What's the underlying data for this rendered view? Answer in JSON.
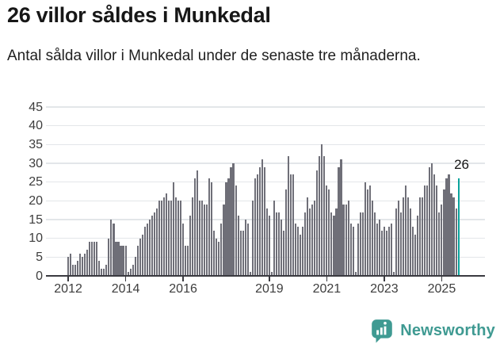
{
  "header": {
    "title": "26 villor såldes i Munkedal",
    "subtitle": "Antal sålda villor i Munkedal under de senaste tre månaderna."
  },
  "chart_data": {
    "type": "bar",
    "title": "26 villor såldes i Munkedal",
    "subtitle": "Antal sålda villor i Munkedal under de senaste tre månaderna.",
    "xlabel": "",
    "ylabel": "",
    "ylim": [
      0,
      45
    ],
    "grid": "horizontal",
    "legend": "none",
    "y_ticks": [
      0,
      5,
      10,
      15,
      20,
      25,
      30,
      35,
      40,
      45
    ],
    "x_tick_years": [
      "2012",
      "2014",
      "2016",
      "2019",
      "2021",
      "2023",
      "2025"
    ],
    "start_month": "2012-01",
    "end_month": "2025-08",
    "bar_color": "#6f6f78",
    "values": [
      5,
      6,
      3,
      3,
      4,
      6,
      5,
      6,
      7,
      9,
      9,
      9,
      9,
      4,
      2,
      2,
      3,
      10,
      15,
      14,
      9,
      9,
      8,
      8,
      8,
      1,
      2,
      3,
      5,
      8,
      10,
      11,
      13,
      14,
      15,
      16,
      17,
      18,
      20,
      20,
      21,
      22,
      20,
      20,
      25,
      21,
      20,
      20,
      14,
      8,
      8,
      16,
      21,
      26,
      28,
      20,
      20,
      19,
      19,
      26,
      25,
      12,
      10,
      9,
      14,
      19,
      25,
      26,
      29,
      30,
      24,
      16,
      12,
      12,
      15,
      14,
      1,
      20,
      26,
      27,
      29,
      31,
      29,
      18,
      16,
      1,
      20,
      17,
      17,
      15,
      12,
      23,
      32,
      27,
      27,
      14,
      13,
      11,
      13,
      17,
      21,
      18,
      19,
      20,
      28,
      32,
      35,
      32,
      24,
      23,
      17,
      16,
      18,
      29,
      31,
      19,
      19,
      20,
      14,
      13,
      1,
      14,
      17,
      17,
      25,
      23,
      24,
      20,
      17,
      14,
      15,
      12,
      13,
      12,
      13,
      14,
      1,
      18,
      20,
      17,
      21,
      24,
      21,
      18,
      13,
      11,
      16,
      21,
      21,
      24,
      24,
      29,
      30,
      27,
      24,
      17,
      19,
      23,
      26,
      27,
      22,
      21,
      18,
      26
    ],
    "highlight": {
      "index": 163,
      "value": 26,
      "label": "26",
      "color": "#0ba39c"
    }
  },
  "colors": {
    "accent_teal": "#0ba39c",
    "bar_gray": "#6f6f78",
    "gridline": "#e3e6e9",
    "axis": "#3a3a40",
    "tick_label": "#3d3d3d",
    "brand_teal": "#3f9a92"
  },
  "footer": {
    "brand": "Newsworthy"
  }
}
